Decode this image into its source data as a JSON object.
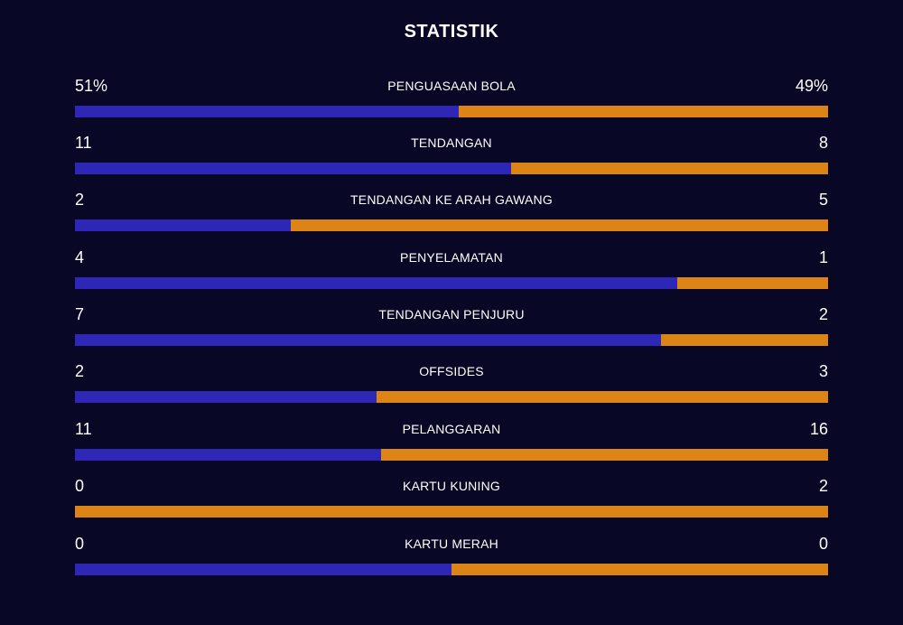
{
  "title": "STATISTIK",
  "colors": {
    "background": "#080725",
    "home": "#2e27b5",
    "away": "#dc8516",
    "text": "#ffffff"
  },
  "stats": [
    {
      "label": "PENGUASAAN BOLA",
      "home": "51%",
      "away": "49%",
      "home_share": 0.51
    },
    {
      "label": "TENDANGAN",
      "home": "11",
      "away": "8",
      "home_share": 0.579
    },
    {
      "label": "TENDANGAN KE ARAH GAWANG",
      "home": "2",
      "away": "5",
      "home_share": 0.286
    },
    {
      "label": "PENYELAMATAN",
      "home": "4",
      "away": "1",
      "home_share": 0.8
    },
    {
      "label": "TENDANGAN PENJURU",
      "home": "7",
      "away": "2",
      "home_share": 0.778
    },
    {
      "label": "OFFSIDES",
      "home": "2",
      "away": "3",
      "home_share": 0.4
    },
    {
      "label": "PELANGGARAN",
      "home": "11",
      "away": "16",
      "home_share": 0.407
    },
    {
      "label": "KARTU KUNING",
      "home": "0",
      "away": "2",
      "home_share": 0
    },
    {
      "label": "KARTU MERAH",
      "home": "0",
      "away": "0",
      "home_share": 0.5
    }
  ]
}
